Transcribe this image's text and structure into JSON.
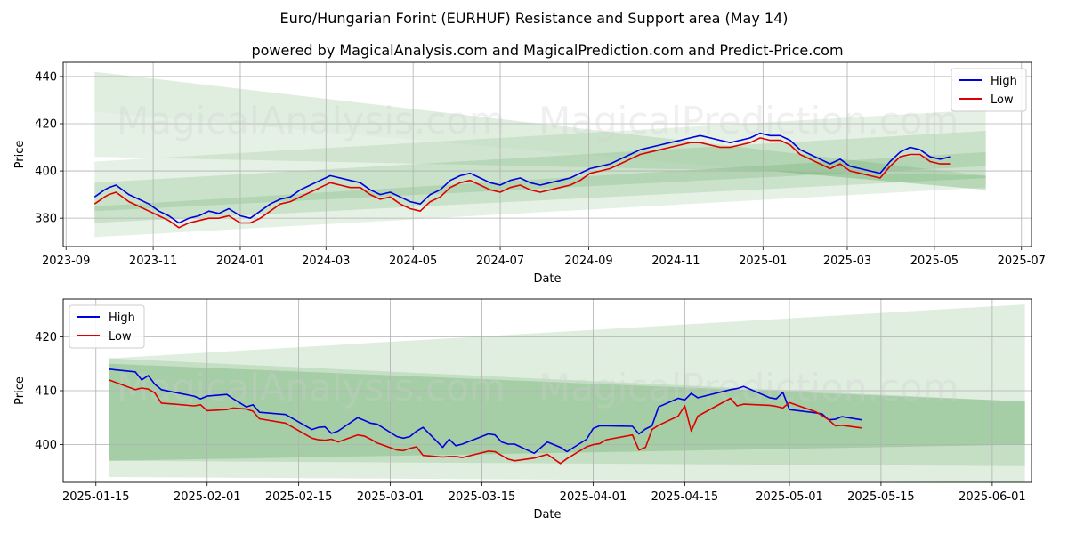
{
  "title": "Euro/Hungarian Forint (EURHUF) Resistance and Support area (May 14)",
  "subtitle": "powered by MagicalAnalysis.com and MagicalPrediction.com and Predict-Price.com",
  "watermarks": [
    "MagicalAnalysis.com",
    "MagicalPrediction.com"
  ],
  "colors": {
    "high": "#0000dd",
    "low": "#dd0000",
    "band": "#2e8b2e",
    "grid": "#b0b0b0"
  },
  "chart_data": [
    {
      "type": "line",
      "xlabel": "Date",
      "ylabel": "Price",
      "xlim": [
        "2023-08-30",
        "2025-07-08"
      ],
      "ylim": [
        368,
        446
      ],
      "yticks": [
        380,
        400,
        420,
        440
      ],
      "xticks": [
        "2023-09",
        "2023-11",
        "2024-01",
        "2024-03",
        "2024-05",
        "2024-07",
        "2024-09",
        "2024-11",
        "2025-01",
        "2025-03",
        "2025-05",
        "2025-07"
      ],
      "legend": {
        "position": "top-right",
        "entries": [
          "High",
          "Low"
        ]
      },
      "grid": true,
      "bands": [
        {
          "x": [
            "2023-09-21",
            "2025-06-06"
          ],
          "top": [
            442,
            398
          ],
          "bottom": [
            425,
            392
          ],
          "alpha": 0.15
        },
        {
          "x": [
            "2023-09-21",
            "2025-06-06"
          ],
          "top": [
            425,
            392
          ],
          "bottom": [
            406,
            398
          ],
          "alpha": 0.12
        },
        {
          "x": [
            "2023-09-21",
            "2025-06-06"
          ],
          "top": [
            404,
            426
          ],
          "bottom": [
            372,
            393
          ],
          "alpha": 0.12
        },
        {
          "x": [
            "2023-09-21",
            "2025-06-06"
          ],
          "top": [
            395,
            417
          ],
          "bottom": [
            383,
            402
          ],
          "alpha": 0.15
        },
        {
          "x": [
            "2023-09-21",
            "2025-06-06"
          ],
          "top": [
            385,
            408
          ],
          "bottom": [
            378,
            397
          ],
          "alpha": 0.15
        }
      ],
      "series": [
        {
          "name": "High",
          "x": [
            "2023-09-21",
            "2023-09-28",
            "2023-10-01",
            "2023-10-06",
            "2023-10-15",
            "2023-10-22",
            "2023-10-29",
            "2023-11-05",
            "2023-11-12",
            "2023-11-19",
            "2023-11-26",
            "2023-12-03",
            "2023-12-10",
            "2023-12-17",
            "2023-12-24",
            "2024-01-01",
            "2024-01-08",
            "2024-01-15",
            "2024-01-22",
            "2024-01-29",
            "2024-02-05",
            "2024-02-12",
            "2024-02-19",
            "2024-02-26",
            "2024-03-04",
            "2024-03-11",
            "2024-03-18",
            "2024-03-25",
            "2024-04-01",
            "2024-04-08",
            "2024-04-15",
            "2024-04-22",
            "2024-04-29",
            "2024-05-06",
            "2024-05-13",
            "2024-05-20",
            "2024-05-27",
            "2024-06-03",
            "2024-06-10",
            "2024-06-17",
            "2024-06-24",
            "2024-07-01",
            "2024-07-08",
            "2024-07-15",
            "2024-07-22",
            "2024-07-29",
            "2024-08-05",
            "2024-08-12",
            "2024-08-19",
            "2024-08-26",
            "2024-09-02",
            "2024-09-09",
            "2024-09-16",
            "2024-09-23",
            "2024-09-30",
            "2024-10-07",
            "2024-10-14",
            "2024-10-21",
            "2024-10-28",
            "2024-11-04",
            "2024-11-11",
            "2024-11-18",
            "2024-11-25",
            "2024-12-02",
            "2024-12-09",
            "2024-12-16",
            "2024-12-23",
            "2024-12-30",
            "2025-01-06",
            "2025-01-13",
            "2025-01-20",
            "2025-01-27",
            "2025-02-03",
            "2025-02-10",
            "2025-02-17",
            "2025-02-24",
            "2025-03-03",
            "2025-03-10",
            "2025-03-17",
            "2025-03-24",
            "2025-03-31",
            "2025-04-07",
            "2025-04-14",
            "2025-04-21",
            "2025-04-28",
            "2025-05-05",
            "2025-05-12"
          ],
          "values": [
            389,
            392,
            393,
            394,
            390,
            388,
            386,
            383,
            381,
            378,
            380,
            381,
            383,
            382,
            384,
            381,
            380,
            383,
            386,
            388,
            389,
            392,
            394,
            396,
            398,
            397,
            396,
            395,
            392,
            390,
            391,
            389,
            387,
            386,
            390,
            392,
            396,
            398,
            399,
            397,
            395,
            394,
            396,
            397,
            395,
            394,
            395,
            396,
            397,
            399,
            401,
            402,
            403,
            405,
            407,
            409,
            410,
            411,
            412,
            413,
            414,
            415,
            414,
            413,
            412,
            413,
            414,
            416,
            415,
            415,
            413,
            409,
            407,
            405,
            403,
            405,
            402,
            401,
            400,
            399,
            404,
            408,
            410,
            409,
            406,
            405,
            406
          ]
        },
        {
          "name": "Low",
          "x": [
            "2023-09-21",
            "2023-09-28",
            "2023-10-01",
            "2023-10-06",
            "2023-10-15",
            "2023-10-22",
            "2023-10-29",
            "2023-11-05",
            "2023-11-12",
            "2023-11-19",
            "2023-11-26",
            "2023-12-03",
            "2023-12-10",
            "2023-12-17",
            "2023-12-24",
            "2024-01-01",
            "2024-01-08",
            "2024-01-15",
            "2024-01-22",
            "2024-01-29",
            "2024-02-05",
            "2024-02-12",
            "2024-02-19",
            "2024-02-26",
            "2024-03-04",
            "2024-03-11",
            "2024-03-18",
            "2024-03-25",
            "2024-04-01",
            "2024-04-08",
            "2024-04-15",
            "2024-04-22",
            "2024-04-29",
            "2024-05-06",
            "2024-05-13",
            "2024-05-20",
            "2024-05-27",
            "2024-06-03",
            "2024-06-10",
            "2024-06-17",
            "2024-06-24",
            "2024-07-01",
            "2024-07-08",
            "2024-07-15",
            "2024-07-22",
            "2024-07-29",
            "2024-08-05",
            "2024-08-12",
            "2024-08-19",
            "2024-08-26",
            "2024-09-02",
            "2024-09-09",
            "2024-09-16",
            "2024-09-23",
            "2024-09-30",
            "2024-10-07",
            "2024-10-14",
            "2024-10-21",
            "2024-10-28",
            "2024-11-04",
            "2024-11-11",
            "2024-11-18",
            "2024-11-25",
            "2024-12-02",
            "2024-12-09",
            "2024-12-16",
            "2024-12-23",
            "2024-12-30",
            "2025-01-06",
            "2025-01-13",
            "2025-01-20",
            "2025-01-27",
            "2025-02-03",
            "2025-02-10",
            "2025-02-17",
            "2025-02-24",
            "2025-03-03",
            "2025-03-10",
            "2025-03-17",
            "2025-03-24",
            "2025-03-31",
            "2025-04-07",
            "2025-04-14",
            "2025-04-21",
            "2025-04-28",
            "2025-05-05",
            "2025-05-12"
          ],
          "values": [
            386,
            389,
            390,
            391,
            387,
            385,
            383,
            381,
            379,
            376,
            378,
            379,
            380,
            380,
            381,
            378,
            378,
            380,
            383,
            386,
            387,
            389,
            391,
            393,
            395,
            394,
            393,
            393,
            390,
            388,
            389,
            386,
            384,
            383,
            387,
            389,
            393,
            395,
            396,
            394,
            392,
            391,
            393,
            394,
            392,
            391,
            392,
            393,
            394,
            396,
            399,
            400,
            401,
            403,
            405,
            407,
            408,
            409,
            410,
            411,
            412,
            412,
            411,
            410,
            410,
            411,
            412,
            414,
            413,
            413,
            411,
            407,
            405,
            403,
            401,
            403,
            400,
            399,
            398,
            397,
            402,
            406,
            407,
            407,
            404,
            403,
            403
          ]
        }
      ]
    },
    {
      "type": "line",
      "xlabel": "Date",
      "ylabel": "Price",
      "xlim": [
        "2025-01-10",
        "2025-06-07"
      ],
      "ylim": [
        393,
        427
      ],
      "yticks": [
        400,
        410,
        420
      ],
      "xticks": [
        "2025-01-15",
        "2025-02-01",
        "2025-02-15",
        "2025-03-01",
        "2025-03-15",
        "2025-04-01",
        "2025-04-15",
        "2025-05-01",
        "2025-05-15",
        "2025-06-01"
      ],
      "legend": {
        "position": "top-left",
        "entries": [
          "High",
          "Low"
        ]
      },
      "grid": true,
      "bands": [
        {
          "x": [
            "2025-01-17",
            "2025-06-06"
          ],
          "top": [
            416,
            426
          ],
          "bottom": [
            394,
            393
          ],
          "alpha": 0.15
        },
        {
          "x": [
            "2025-01-17",
            "2025-06-06"
          ],
          "top": [
            416,
            408
          ],
          "bottom": [
            397,
            396
          ],
          "alpha": 0.15
        },
        {
          "x": [
            "2025-01-17",
            "2025-06-06"
          ],
          "top": [
            415,
            408
          ],
          "bottom": [
            397,
            400
          ],
          "alpha": 0.2
        }
      ],
      "series": [
        {
          "name": "High",
          "x": [
            "2025-01-17",
            "2025-01-21",
            "2025-01-22",
            "2025-01-23",
            "2025-01-24",
            "2025-01-25",
            "2025-01-27",
            "2025-01-30",
            "2025-01-31",
            "2025-02-01",
            "2025-02-04",
            "2025-02-05",
            "2025-02-07",
            "2025-02-08",
            "2025-02-09",
            "2025-02-13",
            "2025-02-17",
            "2025-02-18",
            "2025-02-19",
            "2025-02-20",
            "2025-02-21",
            "2025-02-24",
            "2025-02-25",
            "2025-02-26",
            "2025-02-27",
            "2025-03-02",
            "2025-03-03",
            "2025-03-04",
            "2025-03-05",
            "2025-03-06",
            "2025-03-09",
            "2025-03-10",
            "2025-03-11",
            "2025-03-12",
            "2025-03-16",
            "2025-03-17",
            "2025-03-18",
            "2025-03-19",
            "2025-03-20",
            "2025-03-23",
            "2025-03-25",
            "2025-03-27",
            "2025-03-28",
            "2025-03-31",
            "2025-04-01",
            "2025-04-02",
            "2025-04-03",
            "2025-04-07",
            "2025-04-08",
            "2025-04-09",
            "2025-04-10",
            "2025-04-11",
            "2025-04-14",
            "2025-04-15",
            "2025-04-16",
            "2025-04-17",
            "2025-04-22",
            "2025-04-23",
            "2025-04-24",
            "2025-04-28",
            "2025-04-29",
            "2025-04-30",
            "2025-05-01",
            "2025-05-05",
            "2025-05-06",
            "2025-05-07",
            "2025-05-08",
            "2025-05-09",
            "2025-05-12"
          ],
          "values": [
            414,
            413.5,
            412,
            412.8,
            411.2,
            410.2,
            409.7,
            409,
            408.5,
            409,
            409.3,
            408.5,
            407,
            407.4,
            406,
            405.6,
            402.8,
            403.2,
            403.3,
            402.1,
            402.5,
            405,
            404.5,
            404,
            403.8,
            401.5,
            401.2,
            401.5,
            402.5,
            403.2,
            399.5,
            401,
            399.8,
            400.1,
            402,
            401.8,
            400.5,
            400.1,
            400.1,
            398.4,
            400.5,
            399.5,
            398.7,
            401,
            403,
            403.5,
            403.5,
            403.4,
            402,
            402.9,
            403.5,
            407,
            408.6,
            408.3,
            409.5,
            408.7,
            410.2,
            410.4,
            410.8,
            408.7,
            408.5,
            409.7,
            406.5,
            405.9,
            405.7,
            404.6,
            404.7,
            405.2,
            404.6
          ]
        },
        {
          "name": "Low",
          "x": [
            "2025-01-17",
            "2025-01-21",
            "2025-01-22",
            "2025-01-23",
            "2025-01-24",
            "2025-01-25",
            "2025-01-27",
            "2025-01-30",
            "2025-01-31",
            "2025-02-01",
            "2025-02-04",
            "2025-02-05",
            "2025-02-07",
            "2025-02-08",
            "2025-02-09",
            "2025-02-13",
            "2025-02-17",
            "2025-02-18",
            "2025-02-19",
            "2025-02-20",
            "2025-02-21",
            "2025-02-24",
            "2025-02-25",
            "2025-02-26",
            "2025-02-27",
            "2025-03-02",
            "2025-03-03",
            "2025-03-04",
            "2025-03-05",
            "2025-03-06",
            "2025-03-09",
            "2025-03-10",
            "2025-03-11",
            "2025-03-12",
            "2025-03-16",
            "2025-03-17",
            "2025-03-18",
            "2025-03-19",
            "2025-03-20",
            "2025-03-23",
            "2025-03-25",
            "2025-03-27",
            "2025-03-28",
            "2025-03-31",
            "2025-04-01",
            "2025-04-02",
            "2025-04-03",
            "2025-04-07",
            "2025-04-08",
            "2025-04-09",
            "2025-04-10",
            "2025-04-11",
            "2025-04-14",
            "2025-04-15",
            "2025-04-16",
            "2025-04-17",
            "2025-04-22",
            "2025-04-23",
            "2025-04-24",
            "2025-04-28",
            "2025-04-29",
            "2025-04-30",
            "2025-05-01",
            "2025-05-05",
            "2025-05-06",
            "2025-05-07",
            "2025-05-08",
            "2025-05-09",
            "2025-05-12"
          ],
          "values": [
            412,
            410.2,
            410.5,
            410.3,
            409.6,
            407.7,
            407.5,
            407.2,
            407.4,
            406.3,
            406.5,
            406.8,
            406.6,
            406.2,
            404.8,
            404,
            401.2,
            400.9,
            400.8,
            401,
            400.5,
            401.8,
            401.6,
            401,
            400.3,
            399,
            398.9,
            399.3,
            399.6,
            398,
            397.7,
            397.8,
            397.8,
            397.6,
            398.8,
            398.7,
            398,
            397.3,
            397,
            397.5,
            398.2,
            396.5,
            397.4,
            399.6,
            400,
            400.2,
            400.9,
            401.8,
            399,
            399.5,
            402.8,
            403.6,
            405.3,
            407.2,
            402.5,
            405.3,
            408.6,
            407.2,
            407.5,
            407.3,
            407.1,
            406.8,
            407.8,
            406.1,
            405.4,
            404.6,
            403.5,
            403.6,
            403.1
          ]
        }
      ]
    }
  ]
}
